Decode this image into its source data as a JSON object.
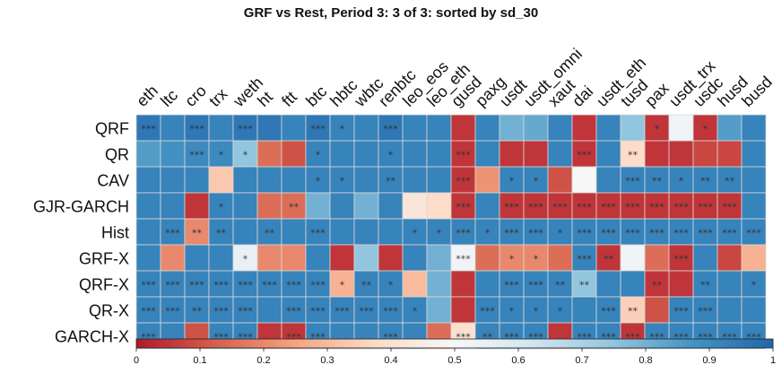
{
  "chart_data": {
    "type": "heatmap",
    "title": "GRF vs Rest,  Period 3: 3 of 3: sorted by sd_30",
    "columns": [
      "eth",
      "ltc",
      "cro",
      "trx",
      "weth",
      "ht",
      "ftt",
      "btc",
      "hbtc",
      "wbtc",
      "renbtc",
      "leo_eos",
      "leo_eth",
      "gusd",
      "paxg",
      "usdt",
      "usdt_omni",
      "xaut",
      "dai",
      "usdt_eth",
      "tusd",
      "pax",
      "usdt_trx",
      "usdc",
      "husd",
      "busd"
    ],
    "rows": [
      "QRF",
      "QR",
      "CAV",
      "GJR-GARCH",
      "Hist",
      "GRF-X",
      "QRF-X",
      "QR-X",
      "GARCH-X"
    ],
    "values": [
      [
        0.95,
        0.92,
        0.95,
        0.92,
        0.95,
        0.95,
        0.92,
        0.95,
        0.92,
        0.92,
        0.95,
        0.92,
        0.92,
        0.05,
        0.92,
        0.8,
        0.82,
        0.92,
        0.05,
        0.92,
        0.75,
        0.05,
        0.52,
        0.05,
        0.85,
        0.92
      ],
      [
        0.85,
        0.88,
        0.9,
        0.9,
        0.75,
        0.15,
        0.1,
        0.92,
        0.92,
        0.92,
        0.92,
        0.92,
        0.92,
        0.05,
        0.92,
        0.05,
        0.05,
        0.92,
        0.05,
        0.92,
        0.38,
        0.05,
        0.05,
        0.08,
        0.08,
        0.92
      ],
      [
        0.92,
        0.92,
        0.92,
        0.33,
        0.92,
        0.92,
        0.92,
        0.92,
        0.92,
        0.92,
        0.92,
        0.92,
        0.92,
        0.05,
        0.22,
        0.92,
        0.92,
        0.1,
        0.5,
        0.92,
        0.92,
        0.92,
        0.92,
        0.92,
        0.92,
        0.92
      ],
      [
        0.92,
        0.92,
        0.05,
        0.92,
        0.92,
        0.15,
        0.15,
        0.8,
        0.92,
        0.8,
        0.92,
        0.42,
        0.38,
        0.05,
        0.92,
        0.05,
        0.05,
        0.05,
        0.05,
        0.05,
        0.05,
        0.05,
        0.05,
        0.05,
        0.05,
        0.92
      ],
      [
        0.92,
        0.92,
        0.2,
        0.92,
        0.92,
        0.92,
        0.92,
        0.92,
        0.92,
        0.92,
        0.92,
        0.92,
        0.92,
        0.92,
        0.92,
        0.92,
        0.92,
        0.92,
        0.92,
        0.92,
        0.92,
        0.92,
        0.92,
        0.92,
        0.92,
        0.92
      ],
      [
        0.92,
        0.2,
        0.92,
        0.92,
        0.55,
        0.2,
        0.2,
        0.92,
        0.05,
        0.75,
        0.05,
        0.92,
        0.8,
        0.52,
        0.15,
        0.2,
        0.2,
        0.15,
        0.92,
        0.05,
        0.52,
        0.15,
        0.05,
        0.92,
        0.08,
        0.28
      ],
      [
        0.92,
        0.92,
        0.92,
        0.92,
        0.92,
        0.92,
        0.92,
        0.92,
        0.28,
        0.92,
        0.92,
        0.3,
        0.8,
        0.05,
        0.92,
        0.92,
        0.92,
        0.92,
        0.75,
        0.92,
        0.92,
        0.05,
        0.05,
        0.92,
        0.92,
        0.92
      ],
      [
        0.92,
        0.92,
        0.92,
        0.92,
        0.92,
        0.92,
        0.92,
        0.92,
        0.92,
        0.92,
        0.92,
        0.92,
        0.8,
        0.05,
        0.92,
        0.92,
        0.92,
        0.92,
        0.92,
        0.92,
        0.35,
        0.1,
        0.92,
        0.92,
        0.92,
        0.92
      ],
      [
        0.92,
        0.92,
        0.1,
        0.92,
        0.92,
        0.05,
        0.05,
        0.92,
        0.92,
        0.92,
        0.92,
        0.92,
        0.15,
        0.4,
        0.92,
        0.92,
        0.92,
        0.05,
        0.92,
        0.92,
        0.05,
        0.92,
        0.92,
        0.92,
        0.92,
        0.92
      ]
    ],
    "stars": [
      [
        "***",
        "",
        "***",
        "",
        "***",
        "",
        "",
        "***",
        "*",
        "",
        "***",
        "",
        "",
        "",
        "",
        "",
        "",
        "",
        "",
        "",
        "",
        "*",
        "",
        "*",
        "",
        ""
      ],
      [
        "",
        "",
        "***",
        "*",
        "*",
        "",
        "",
        "*",
        "",
        "",
        "*",
        "",
        "",
        "***",
        "",
        "",
        "",
        "",
        "***",
        "",
        "**",
        "",
        "",
        "",
        "",
        ""
      ],
      [
        "",
        "",
        "",
        "",
        "",
        "",
        "",
        "*",
        "*",
        "",
        "**",
        "",
        "",
        "***",
        "",
        "*",
        "*",
        "",
        "",
        "",
        "***",
        "**",
        "*",
        "**",
        "**",
        ""
      ],
      [
        "",
        "",
        "",
        "*",
        "",
        "",
        "**",
        "",
        "",
        "",
        "",
        "",
        "",
        "***",
        "",
        "***",
        "***",
        "***",
        "***",
        "***",
        "***",
        "***",
        "***",
        "***",
        "***",
        ""
      ],
      [
        "",
        "***",
        "**",
        "**",
        "",
        "**",
        "",
        "***",
        "",
        "",
        "",
        "*",
        "*",
        "***",
        "*",
        "***",
        "***",
        "*",
        "***",
        "***",
        "***",
        "***",
        "***",
        "***",
        "***",
        "***"
      ],
      [
        "",
        "",
        "",
        "",
        "*",
        "",
        "",
        "",
        "",
        "",
        "",
        "",
        "",
        "***",
        "",
        "*",
        "*",
        "",
        "***",
        "**",
        "",
        "",
        "***",
        "",
        "",
        ""
      ],
      [
        "***",
        "***",
        "***",
        "***",
        "***",
        "***",
        "***",
        "***",
        "*",
        "**",
        "*",
        "",
        "",
        "",
        "",
        "***",
        "***",
        "**",
        "**",
        "",
        "",
        "**",
        "",
        "**",
        "",
        "*"
      ],
      [
        "***",
        "***",
        "**",
        "***",
        "***",
        "",
        "***",
        "***",
        "***",
        "***",
        "***",
        "*",
        "",
        "",
        "***",
        "*",
        "*",
        "*",
        "",
        "***",
        "**",
        "",
        "***",
        "***",
        "",
        ""
      ],
      [
        "***",
        "",
        "",
        "***",
        "***",
        "",
        "***",
        "***",
        "",
        "",
        "***",
        "",
        "",
        "***",
        "**",
        "***",
        "***",
        "",
        "***",
        "***",
        "***",
        "***",
        "***",
        "***",
        "***",
        "***"
      ]
    ],
    "colorbar": {
      "min": 0,
      "max": 1,
      "ticks": [
        "0",
        "0.1",
        "0.2",
        "0.3",
        "0.4",
        "0.5",
        "0.6",
        "0.7",
        "0.8",
        "0.9",
        "1"
      ]
    },
    "colormap": [
      "#b2182b",
      "#d6604d",
      "#f4a582",
      "#fddbc7",
      "#f7f7f7",
      "#d1e5f0",
      "#92c5de",
      "#4393c3",
      "#2166ac"
    ]
  }
}
